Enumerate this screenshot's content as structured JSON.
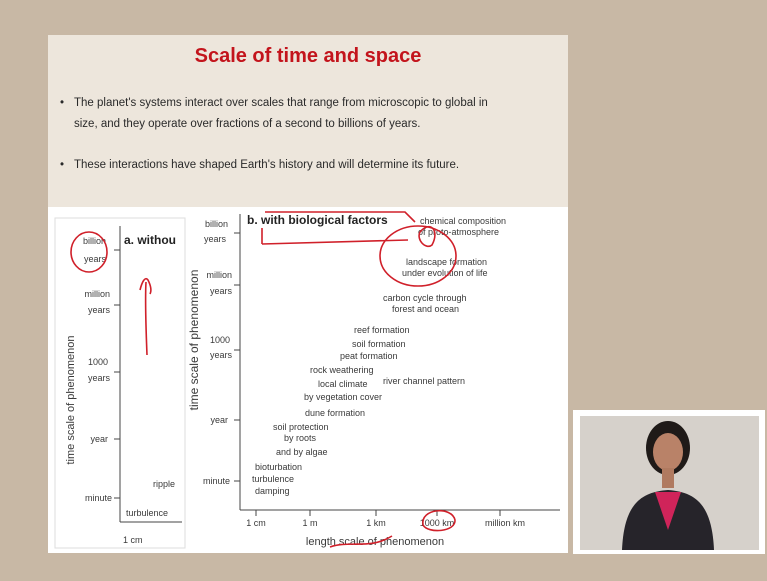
{
  "slide": {
    "title": "Scale of time and space",
    "bullets": [
      [
        "The planet's systems interact over scales that range from microscopic to global in",
        "size, and they operate over fractions of a second to billions of years."
      ],
      [
        "These interactions have shaped Earth's history and will determine its future."
      ]
    ],
    "panel_a": {
      "title": "a. withou",
      "y_axis_label": "time scale of phenomenon",
      "y_ticks": [
        [
          "billion",
          "years"
        ],
        [
          "million",
          "years"
        ],
        [
          "1000",
          "years"
        ],
        [
          "year"
        ],
        [
          "minute"
        ]
      ],
      "phenomena": [
        [
          "ripple"
        ],
        [
          "turbulence"
        ]
      ],
      "x_ticks": [
        "1 cm"
      ]
    },
    "panel_b": {
      "title": "b. with biological factors",
      "y_axis_label": "time scale of phenomenon",
      "y_ticks": [
        [
          "billion",
          "years"
        ],
        [
          "million",
          "years"
        ],
        [
          "1000",
          "years"
        ],
        [
          "year"
        ],
        [
          "minute"
        ]
      ],
      "x_axis_label": "length scale of phenomenon",
      "x_ticks": [
        "1 cm",
        "1 m",
        "1 km",
        "1000 km",
        "million km"
      ],
      "phenomena": [
        [
          "chemical composition",
          "of proto-atmosphere"
        ],
        [
          "landscape formation",
          "under evolution of life"
        ],
        [
          "carbon cycle through",
          "forest and ocean"
        ],
        [
          "reef formation"
        ],
        [
          "soil formation"
        ],
        [
          "peat formation"
        ],
        [
          "rock weathering"
        ],
        [
          "local climate"
        ],
        [
          "river channel pattern"
        ],
        [
          "by vegetation cover"
        ],
        [
          "dune formation"
        ],
        [
          "soil protection",
          "by roots",
          "and by algae"
        ],
        [
          "bioturbation"
        ],
        [
          "turbulence",
          "damping"
        ]
      ]
    }
  }
}
